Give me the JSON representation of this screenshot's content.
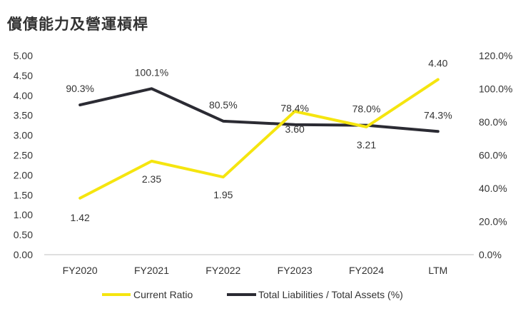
{
  "chart_data": {
    "type": "line",
    "title": "償債能力及營運槓桿",
    "categories": [
      "FY2020",
      "FY2021",
      "FY2022",
      "FY2023",
      "FY2024",
      "LTM"
    ],
    "series": [
      {
        "name": "Current Ratio",
        "axis": "left",
        "color": "#f5e50f",
        "values": [
          1.42,
          2.35,
          1.95,
          3.6,
          3.21,
          4.4
        ],
        "labels": [
          "1.42",
          "2.35",
          "1.95",
          "3.60",
          "3.21",
          "4.40"
        ]
      },
      {
        "name": "Total Liabilities / Total Assets (%)",
        "axis": "right",
        "color": "#2b2b33",
        "values": [
          90.3,
          100.1,
          80.5,
          78.4,
          78.0,
          74.3
        ],
        "labels": [
          "90.3%",
          "100.1%",
          "80.5%",
          "78.4%",
          "78.0%",
          "74.3%"
        ]
      }
    ],
    "y_left": {
      "ylim": [
        0,
        5
      ],
      "ticks": [
        "0.00",
        "0.50",
        "1.00",
        "1.50",
        "2.00",
        "2.50",
        "3.00",
        "3.50",
        "4.00",
        "4.50",
        "5.00"
      ]
    },
    "y_right": {
      "ylim": [
        0,
        120
      ],
      "ticks": [
        "0.0%",
        "20.0%",
        "40.0%",
        "60.0%",
        "80.0%",
        "100.0%",
        "120.0%"
      ]
    },
    "legend": "bottom",
    "grid": false
  }
}
